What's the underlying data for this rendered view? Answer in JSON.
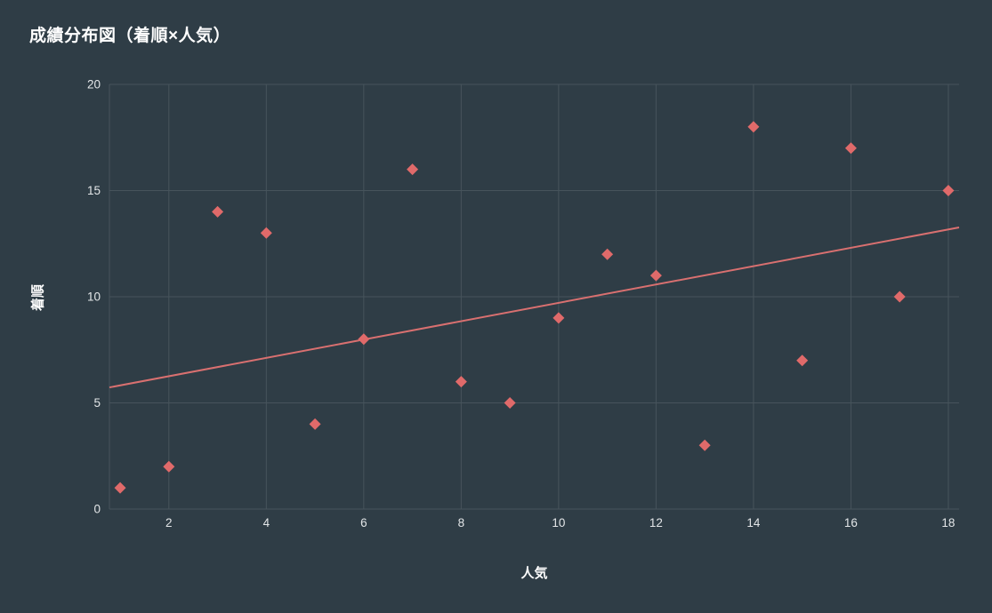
{
  "chart_data": {
    "type": "scatter",
    "title": "成績分布図（着順×人気）",
    "xlabel": "人気",
    "ylabel": "着順",
    "x": [
      1,
      2,
      3,
      4,
      5,
      6,
      7,
      8,
      9,
      10,
      11,
      12,
      13,
      14,
      15,
      16,
      17,
      18
    ],
    "y": [
      1,
      2,
      14,
      13,
      4,
      8,
      16,
      6,
      5,
      9,
      12,
      11,
      3,
      18,
      7,
      17,
      10,
      15
    ],
    "xlim": [
      0.78,
      18.22
    ],
    "ylim": [
      0,
      20
    ],
    "x_ticks": [
      2,
      4,
      6,
      8,
      10,
      12,
      14,
      16,
      18
    ],
    "y_ticks": [
      0,
      5,
      10,
      15,
      20
    ],
    "grid": true,
    "legend": "none",
    "marker": {
      "shape": "diamond",
      "size": 13
    },
    "trendline": {
      "type": "linear",
      "slope": 0.432,
      "intercept": 5.392
    },
    "colors": {
      "background": "#2f3d46",
      "grid": "#47545c",
      "axis_line": "#47545c",
      "point": "#e06a6a",
      "trendline": "#d97070",
      "tick_text": "#e3e6e8",
      "title_text": "#ffffff",
      "axis_label_text": "#ffffff"
    }
  }
}
